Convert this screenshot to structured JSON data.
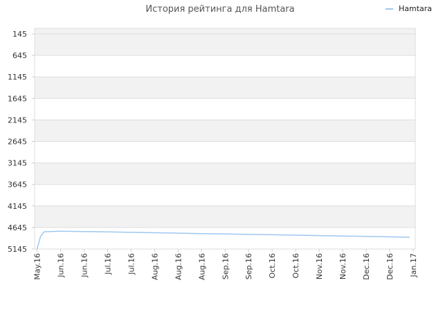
{
  "chart_data": {
    "type": "line",
    "title": "История рейтинга для Hamtara",
    "xlabel": "",
    "ylabel": "",
    "y_axis_inverted": true,
    "ylim": [
      145,
      5145
    ],
    "y_ticks": [
      145,
      645,
      1145,
      1645,
      2145,
      2645,
      3145,
      3645,
      4145,
      4645,
      5145
    ],
    "x_ticks": [
      "May.16",
      "Jun.16",
      "Jun.16",
      "Jul.16",
      "Jul.16",
      "Aug.16",
      "Aug.16",
      "Aug.16",
      "Sep.16",
      "Sep.16",
      "Oct.16",
      "Oct.16",
      "Nov.16",
      "Nov.16",
      "Dec.16",
      "Dec.16",
      "Jan.17"
    ],
    "grid": true,
    "legend_position": "top-right",
    "colors": {
      "series": "#9dc8f0",
      "band": "#f2f2f2",
      "grid": "#dddddd"
    },
    "series": [
      {
        "name": "Hamtara",
        "points": [
          [
            0.0,
            5145
          ],
          [
            0.15,
            4850
          ],
          [
            0.3,
            4745
          ],
          [
            1.0,
            4730
          ],
          [
            2,
            4738
          ],
          [
            3,
            4748
          ],
          [
            4,
            4758
          ],
          [
            5,
            4767
          ],
          [
            6,
            4777
          ],
          [
            7,
            4786
          ],
          [
            8,
            4796
          ],
          [
            9,
            4805
          ],
          [
            10,
            4814
          ],
          [
            11,
            4824
          ],
          [
            12,
            4833
          ],
          [
            13,
            4843
          ],
          [
            14,
            4852
          ],
          [
            15,
            4862
          ],
          [
            15.85,
            4872
          ]
        ]
      }
    ]
  }
}
